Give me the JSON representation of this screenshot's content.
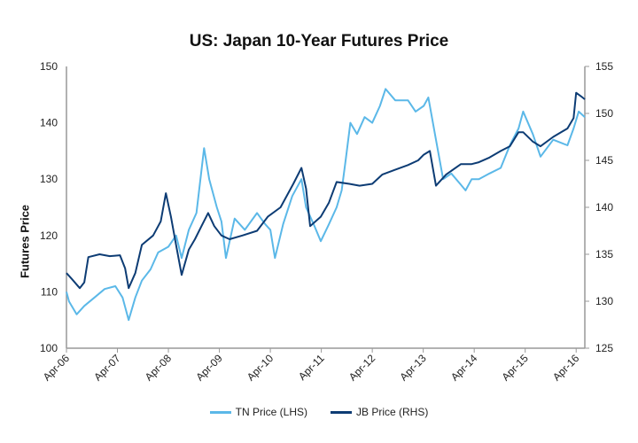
{
  "chart_data": {
    "type": "line",
    "title": "US: Japan 10-Year Futures Price",
    "xlabel": "",
    "ylabel": "Futures Price",
    "xlim": [
      2006.25,
      2016.42
    ],
    "ylim_left": [
      100,
      150
    ],
    "ylim_right": [
      125,
      155
    ],
    "yticks_left": [
      "100",
      "110",
      "120",
      "130",
      "140",
      "150"
    ],
    "yticks_right": [
      "125",
      "130",
      "135",
      "140",
      "145",
      "150",
      "155"
    ],
    "xticks": [
      {
        "t": 2006.25,
        "label": "Apr-06"
      },
      {
        "t": 2007.25,
        "label": "Apr-07"
      },
      {
        "t": 2008.25,
        "label": "Apr-08"
      },
      {
        "t": 2009.25,
        "label": "Apr-09"
      },
      {
        "t": 2010.25,
        "label": "Apr-10"
      },
      {
        "t": 2011.25,
        "label": "Apr-11"
      },
      {
        "t": 2012.25,
        "label": "Apr-12"
      },
      {
        "t": 2013.25,
        "label": "Apr-13"
      },
      {
        "t": 2014.25,
        "label": "Apr-14"
      },
      {
        "t": 2015.25,
        "label": "Apr-15"
      },
      {
        "t": 2016.25,
        "label": "Apr-16"
      }
    ],
    "grid": false,
    "legend_position": "bottom",
    "series": [
      {
        "name": "TN Price (LHS)",
        "axis": "left",
        "color": "#5bb8e8",
        "points": [
          [
            2006.25,
            110
          ],
          [
            2006.3,
            108.3
          ],
          [
            2006.45,
            106
          ],
          [
            2006.6,
            107.5
          ],
          [
            2006.8,
            109
          ],
          [
            2007.0,
            110.5
          ],
          [
            2007.21,
            111
          ],
          [
            2007.35,
            109
          ],
          [
            2007.47,
            105
          ],
          [
            2007.6,
            109
          ],
          [
            2007.73,
            112
          ],
          [
            2007.9,
            114
          ],
          [
            2008.05,
            117
          ],
          [
            2008.25,
            118
          ],
          [
            2008.4,
            120
          ],
          [
            2008.51,
            116
          ],
          [
            2008.65,
            121
          ],
          [
            2008.8,
            124
          ],
          [
            2008.95,
            135.5
          ],
          [
            2009.05,
            130
          ],
          [
            2009.2,
            125
          ],
          [
            2009.29,
            122.5
          ],
          [
            2009.38,
            116
          ],
          [
            2009.55,
            123
          ],
          [
            2009.75,
            121
          ],
          [
            2009.99,
            124
          ],
          [
            2010.15,
            122
          ],
          [
            2010.25,
            121
          ],
          [
            2010.34,
            116
          ],
          [
            2010.5,
            122
          ],
          [
            2010.68,
            127
          ],
          [
            2010.86,
            130
          ],
          [
            2010.95,
            125
          ],
          [
            2011.1,
            122
          ],
          [
            2011.24,
            119
          ],
          [
            2011.4,
            122
          ],
          [
            2011.55,
            125
          ],
          [
            2011.65,
            128
          ],
          [
            2011.73,
            133.5
          ],
          [
            2011.82,
            140
          ],
          [
            2011.95,
            138
          ],
          [
            2012.1,
            141
          ],
          [
            2012.25,
            140
          ],
          [
            2012.4,
            143
          ],
          [
            2012.51,
            146
          ],
          [
            2012.7,
            144
          ],
          [
            2012.95,
            144
          ],
          [
            2013.1,
            142
          ],
          [
            2013.26,
            143
          ],
          [
            2013.35,
            144.5
          ],
          [
            2013.5,
            137
          ],
          [
            2013.64,
            130
          ],
          [
            2013.8,
            131
          ],
          [
            2013.99,
            129
          ],
          [
            2014.08,
            128
          ],
          [
            2014.2,
            130
          ],
          [
            2014.34,
            130
          ],
          [
            2014.55,
            131
          ],
          [
            2014.77,
            132
          ],
          [
            2014.95,
            136
          ],
          [
            2015.12,
            139
          ],
          [
            2015.21,
            142
          ],
          [
            2015.4,
            138
          ],
          [
            2015.55,
            134
          ],
          [
            2015.8,
            137
          ],
          [
            2016.08,
            136
          ],
          [
            2016.2,
            139
          ],
          [
            2016.3,
            142
          ],
          [
            2016.42,
            141
          ]
        ]
      },
      {
        "name": "JB Price (RHS)",
        "axis": "right",
        "color": "#0d3c74",
        "points": [
          [
            2006.25,
            133
          ],
          [
            2006.35,
            132.4
          ],
          [
            2006.51,
            131.4
          ],
          [
            2006.6,
            132
          ],
          [
            2006.68,
            134.7
          ],
          [
            2006.9,
            135
          ],
          [
            2007.1,
            134.8
          ],
          [
            2007.3,
            134.9
          ],
          [
            2007.4,
            133.5
          ],
          [
            2007.47,
            131.4
          ],
          [
            2007.6,
            133
          ],
          [
            2007.73,
            136
          ],
          [
            2007.95,
            137
          ],
          [
            2008.1,
            138.5
          ],
          [
            2008.2,
            141.5
          ],
          [
            2008.3,
            139
          ],
          [
            2008.4,
            136
          ],
          [
            2008.51,
            132.8
          ],
          [
            2008.65,
            135.5
          ],
          [
            2008.77,
            136.6
          ],
          [
            2008.9,
            138
          ],
          [
            2009.03,
            139.4
          ],
          [
            2009.15,
            138
          ],
          [
            2009.29,
            137
          ],
          [
            2009.45,
            136.6
          ],
          [
            2009.7,
            137
          ],
          [
            2009.99,
            137.5
          ],
          [
            2010.2,
            139
          ],
          [
            2010.45,
            140
          ],
          [
            2010.7,
            142.5
          ],
          [
            2010.86,
            144.2
          ],
          [
            2010.95,
            142
          ],
          [
            2011.03,
            138
          ],
          [
            2011.24,
            139
          ],
          [
            2011.4,
            140.5
          ],
          [
            2011.55,
            142.7
          ],
          [
            2011.8,
            142.5
          ],
          [
            2012.0,
            142.3
          ],
          [
            2012.25,
            142.5
          ],
          [
            2012.45,
            143.5
          ],
          [
            2012.7,
            144
          ],
          [
            2012.95,
            144.5
          ],
          [
            2013.15,
            145
          ],
          [
            2013.26,
            145.6
          ],
          [
            2013.38,
            146
          ],
          [
            2013.5,
            142.3
          ],
          [
            2013.7,
            143.5
          ],
          [
            2013.99,
            144.6
          ],
          [
            2014.2,
            144.6
          ],
          [
            2014.34,
            144.8
          ],
          [
            2014.55,
            145.3
          ],
          [
            2014.77,
            146
          ],
          [
            2014.95,
            146.5
          ],
          [
            2015.12,
            148
          ],
          [
            2015.21,
            148
          ],
          [
            2015.4,
            147
          ],
          [
            2015.55,
            146.5
          ],
          [
            2015.8,
            147.5
          ],
          [
            2016.08,
            148.4
          ],
          [
            2016.2,
            149.5
          ],
          [
            2016.25,
            152.2
          ],
          [
            2016.35,
            151.8
          ],
          [
            2016.42,
            151.5
          ]
        ]
      }
    ]
  }
}
